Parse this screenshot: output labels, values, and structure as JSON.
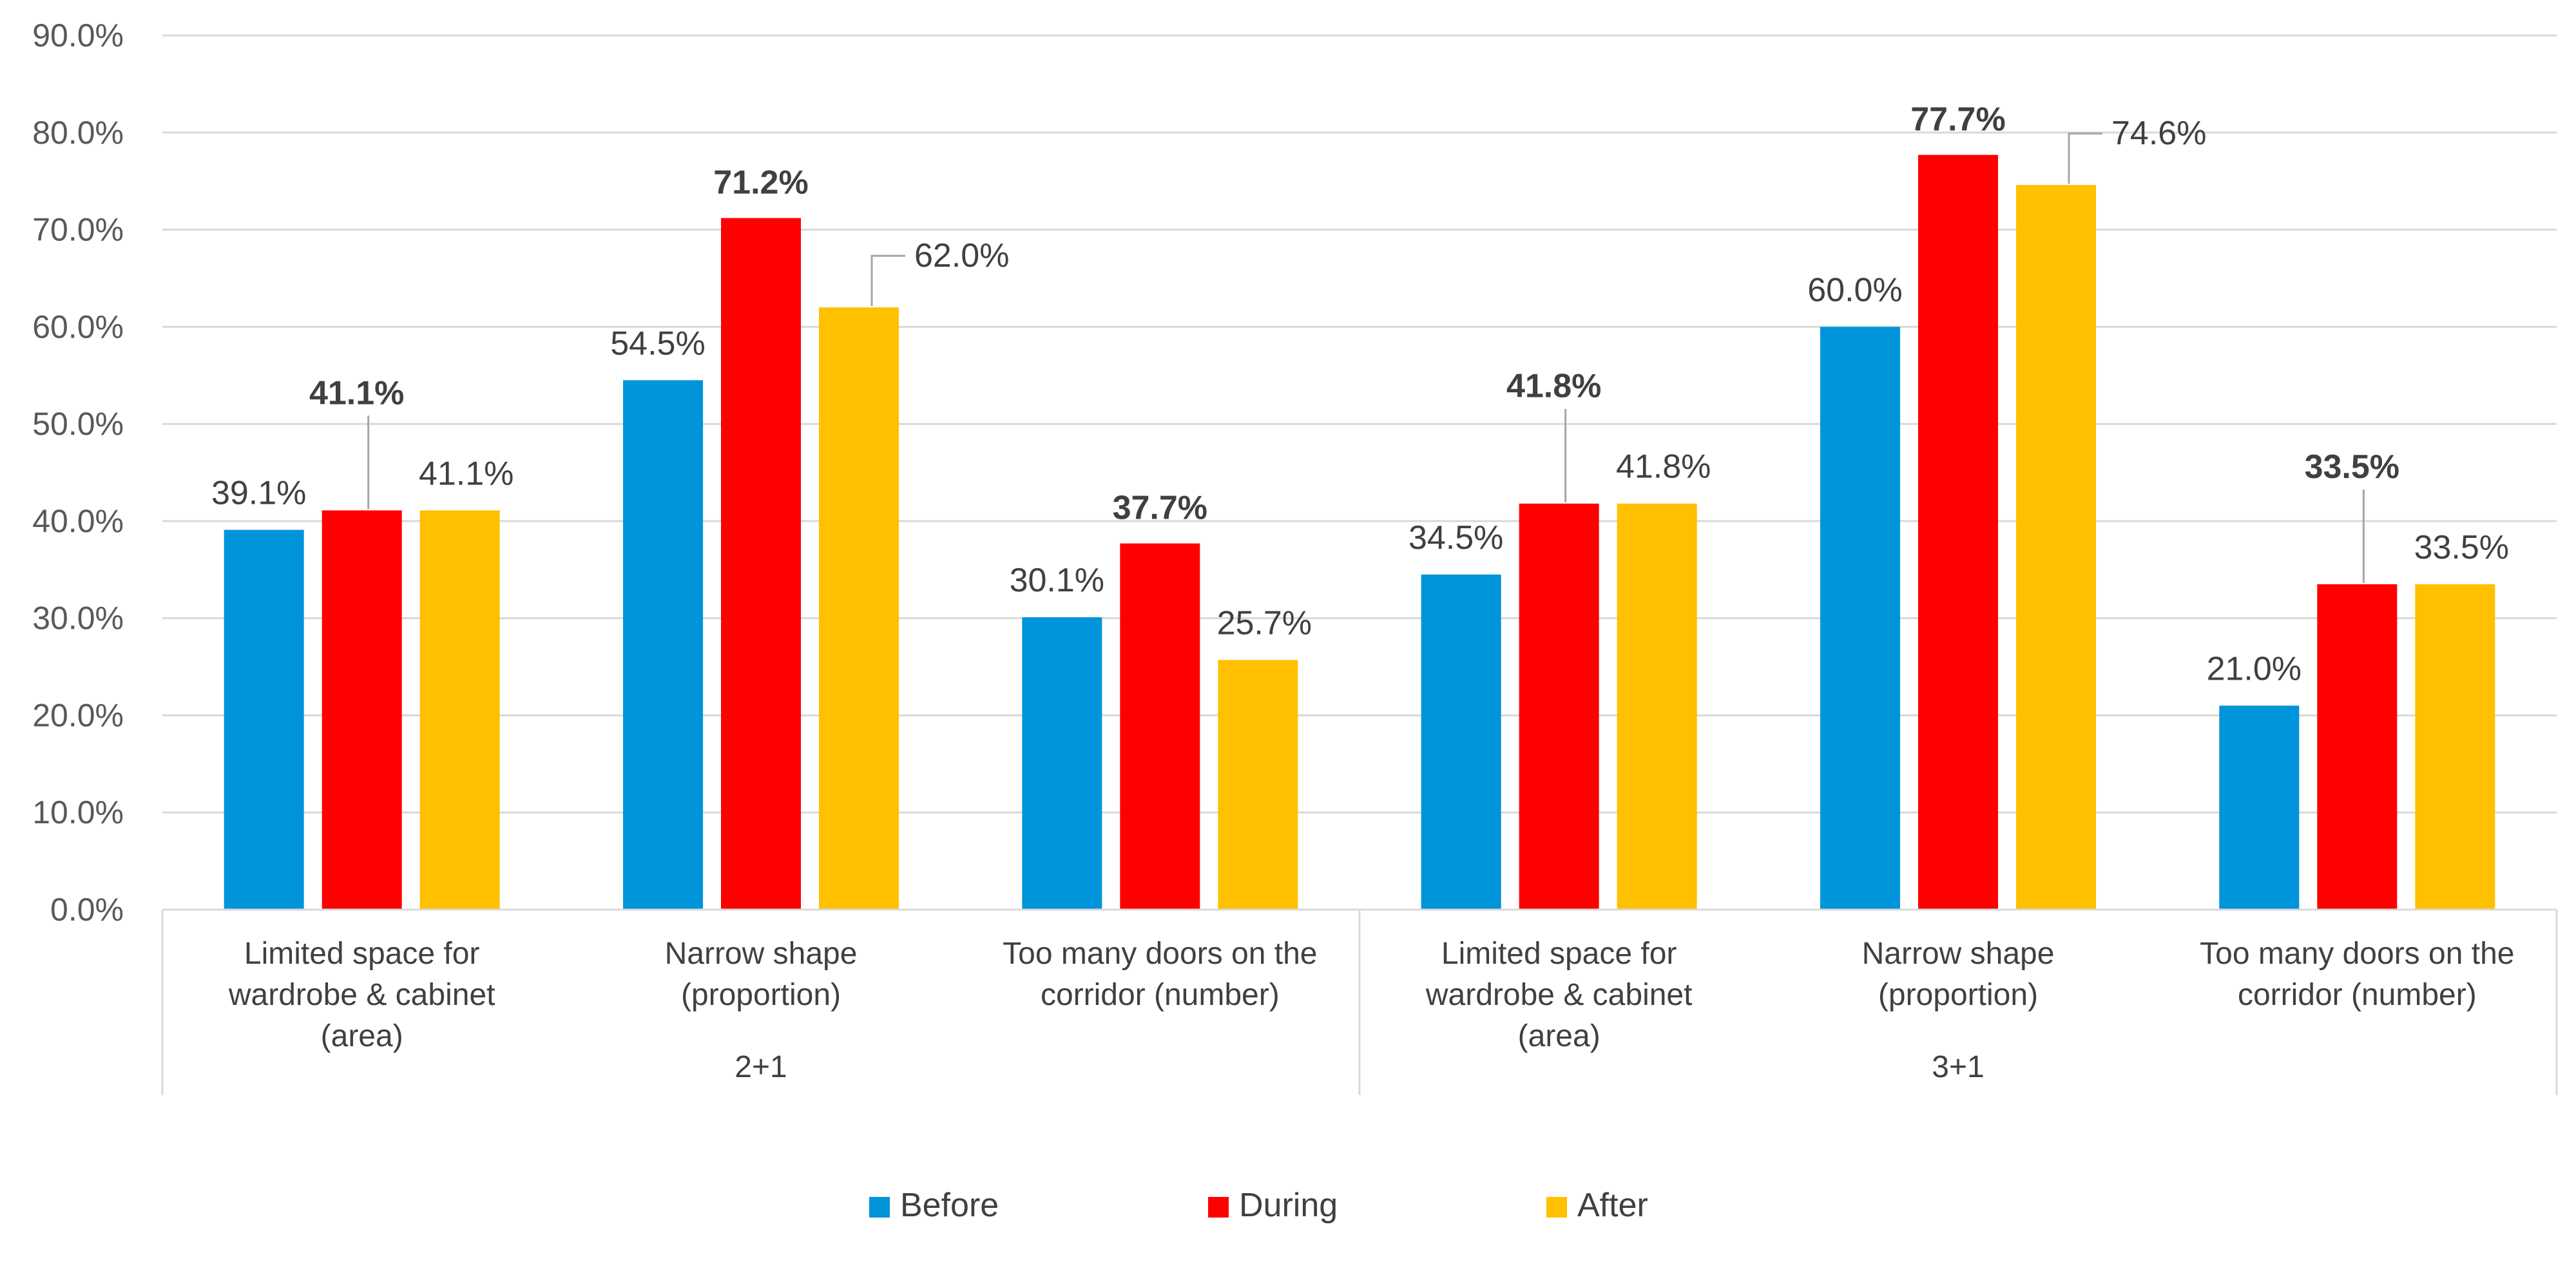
{
  "chart_data": {
    "type": "bar",
    "groups": [
      {
        "label": "2+1",
        "categories": [
          "Limited space for wardrobe & cabinet (area)",
          "Narrow shape (proportion)",
          "Too many doors on the corridor (number)"
        ]
      },
      {
        "label": "3+1",
        "categories": [
          "Limited space for wardrobe & cabinet (area)",
          "Narrow shape (proportion)",
          "Too many doors on the corridor (number)"
        ]
      }
    ],
    "series": [
      {
        "name": "Before",
        "color": "#0094DA",
        "values": [
          39.1,
          54.5,
          30.1,
          34.5,
          60.0,
          21.0
        ]
      },
      {
        "name": "During",
        "color": "#FF0000",
        "values": [
          41.1,
          71.2,
          37.7,
          41.8,
          77.7,
          33.5
        ]
      },
      {
        "name": "After",
        "color": "#FFC000",
        "values": [
          41.1,
          62.0,
          25.7,
          41.8,
          74.6,
          33.5
        ]
      }
    ],
    "value_format": "percent_1dp",
    "bold_series": "During",
    "ylim": [
      0,
      90
    ],
    "ytick_step": 10,
    "grid": true,
    "legend_position": "bottom",
    "title": "",
    "xlabel": "",
    "ylabel": ""
  }
}
